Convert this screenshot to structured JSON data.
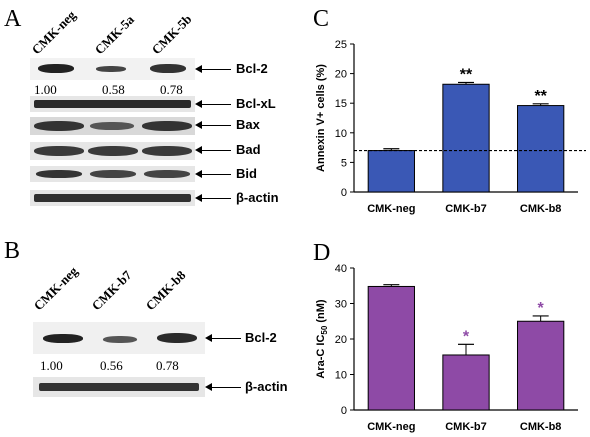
{
  "panels": {
    "A": {
      "letter": "A",
      "lanes": [
        "CMK-neg",
        "CMK-5a",
        "CMK-5b"
      ],
      "blots": [
        {
          "label": "Bcl-2",
          "ratios": [
            "1.00",
            "0.58",
            "0.78"
          ]
        },
        {
          "label": "Bcl-xL"
        },
        {
          "label": "Bax"
        },
        {
          "label": "Bad"
        },
        {
          "label": "Bid"
        },
        {
          "label": "β-actin"
        }
      ]
    },
    "B": {
      "letter": "B",
      "lanes": [
        "CMK-neg",
        "CMK-b7",
        "CMK-b8"
      ],
      "blots": [
        {
          "label": "Bcl-2",
          "ratios": [
            "1.00",
            "0.56",
            "0.78"
          ]
        },
        {
          "label": "β-actin"
        }
      ]
    },
    "C": {
      "letter": "C"
    },
    "D": {
      "letter": "D"
    }
  },
  "chart_data": [
    {
      "panel": "C",
      "type": "bar",
      "categories": [
        "CMK-neg",
        "CMK-b7",
        "CMK-b8"
      ],
      "values": [
        7.0,
        18.2,
        14.6
      ],
      "errors": [
        0.3,
        0.3,
        0.3
      ],
      "annotations": [
        "",
        "**",
        "**"
      ],
      "reference_line": 7.0,
      "ylabel": "Annexin V+ cells (%)",
      "ylim": [
        0,
        25
      ],
      "yticks": [
        "0",
        "5",
        "10",
        "15",
        "20",
        "25"
      ],
      "bar_color": "#3a58b5",
      "annotation_color": "#000000"
    },
    {
      "panel": "D",
      "type": "bar",
      "categories": [
        "CMK-neg",
        "CMK-b7",
        "CMK-b8"
      ],
      "values": [
        34.8,
        15.5,
        25.0
      ],
      "errors": [
        0.5,
        3.0,
        1.5
      ],
      "annotations": [
        "",
        "*",
        "*"
      ],
      "ylabel": "Ara-C IC50 (nM)",
      "ylabel_main": "Ara-C IC",
      "ylabel_sub": "50",
      "ylabel_unit": " (nM)",
      "ylim": [
        0,
        40
      ],
      "yticks": [
        "0",
        "10",
        "20",
        "30",
        "40"
      ],
      "bar_color": "#8e4aa6",
      "annotation_color": "#8e4aa6"
    }
  ]
}
